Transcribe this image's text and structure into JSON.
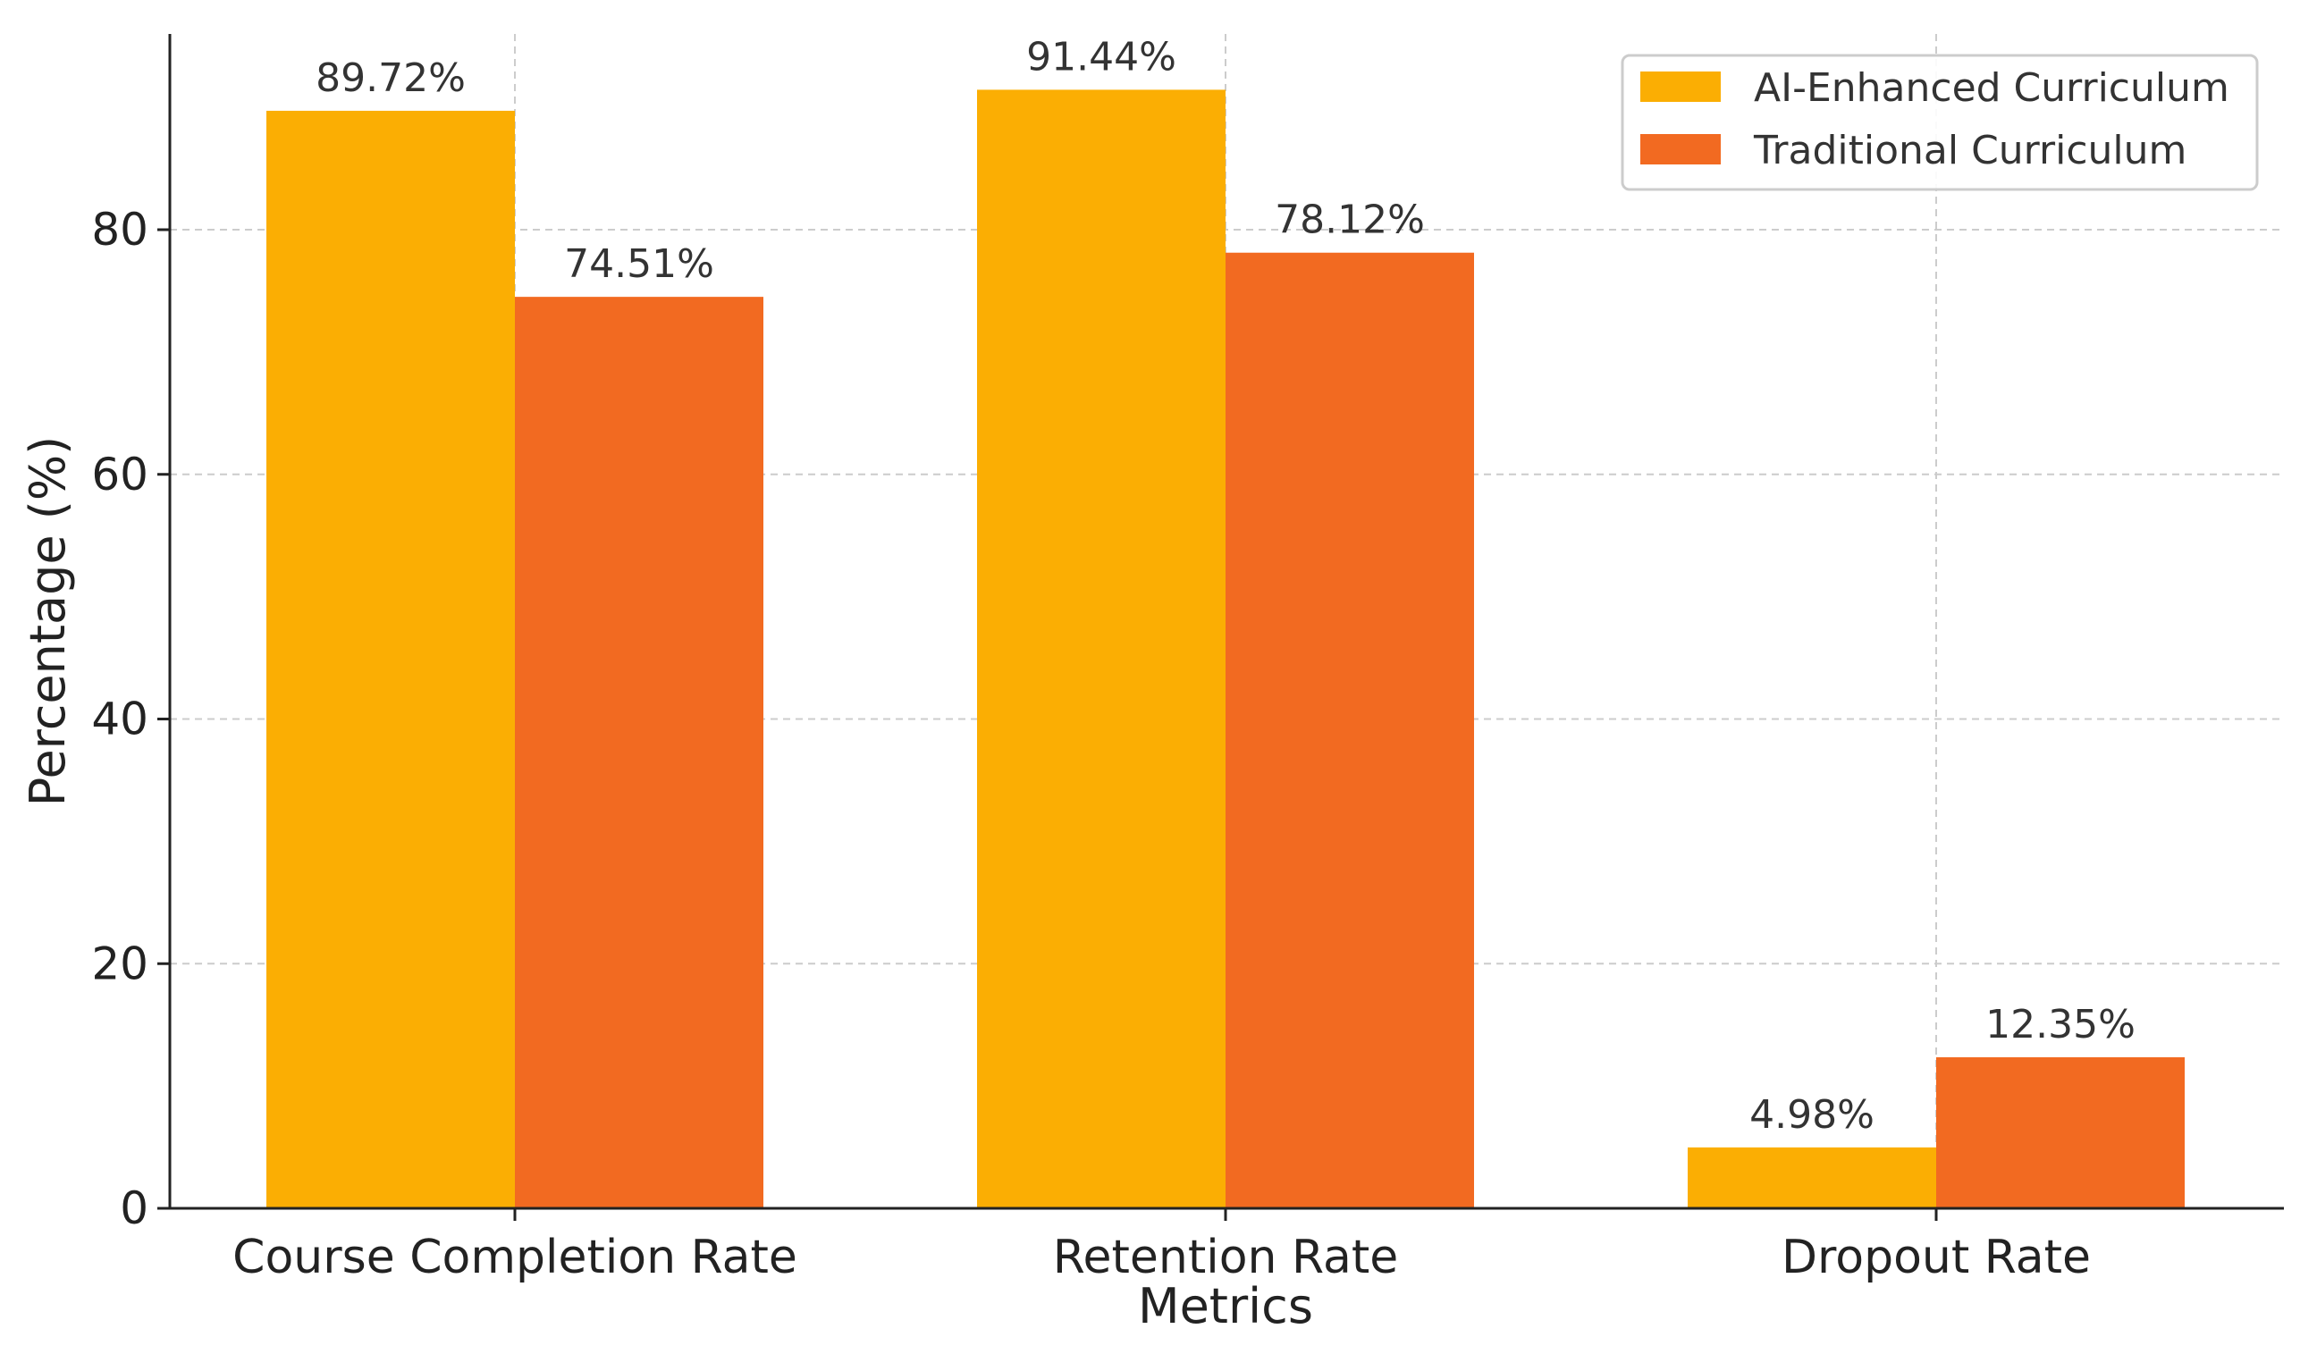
{
  "chart_data": {
    "type": "bar",
    "title": "",
    "xlabel": "Metrics",
    "ylabel": "Percentage (%)",
    "ylim": [
      0,
      96
    ],
    "yticks": [
      0,
      20,
      40,
      60,
      80
    ],
    "categories": [
      "Course Completion Rate",
      "Retention Rate",
      "Dropout Rate"
    ],
    "series": [
      {
        "name": "AI-Enhanced Curriculum",
        "color": "#FBAE03",
        "values": [
          89.72,
          91.44,
          4.98
        ],
        "labels": [
          "89.72%",
          "91.44%",
          "4.98%"
        ]
      },
      {
        "name": "Traditional Curriculum",
        "color": "#F26A21",
        "values": [
          74.51,
          78.12,
          12.35
        ],
        "labels": [
          "74.51%",
          "78.12%",
          "12.35%"
        ]
      }
    ],
    "grid": true,
    "legend": "top-right"
  }
}
